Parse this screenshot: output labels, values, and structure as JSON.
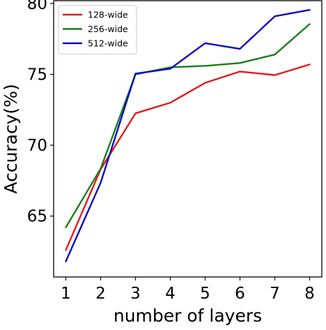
{
  "chart_data": {
    "type": "line",
    "xlabel": "number of layers",
    "ylabel": "Accuracy(%)",
    "x": [
      1,
      2,
      3,
      4,
      5,
      6,
      7,
      8
    ],
    "xticks": [
      "1",
      "2",
      "3",
      "4",
      "5",
      "6",
      "7",
      "8"
    ],
    "yticks": [
      "65",
      "70",
      "75",
      "80"
    ],
    "xlim": [
      0.65,
      8.35
    ],
    "ylim": [
      60.7,
      80.2
    ],
    "grid": false,
    "legend_position": "top-left",
    "series": [
      {
        "name": "128-wide",
        "color": "#e31a1c",
        "values": [
          62.6,
          68.3,
          72.25,
          73.0,
          74.4,
          75.2,
          74.95,
          75.7
        ]
      },
      {
        "name": "256-wide",
        "color": "#1a7f1a",
        "values": [
          64.2,
          68.35,
          75.0,
          75.5,
          75.6,
          75.8,
          76.4,
          78.55
        ]
      },
      {
        "name": "512-wide",
        "color": "#0a0ac8",
        "values": [
          61.8,
          67.35,
          75.05,
          75.4,
          77.2,
          76.8,
          79.1,
          79.55
        ]
      }
    ]
  }
}
